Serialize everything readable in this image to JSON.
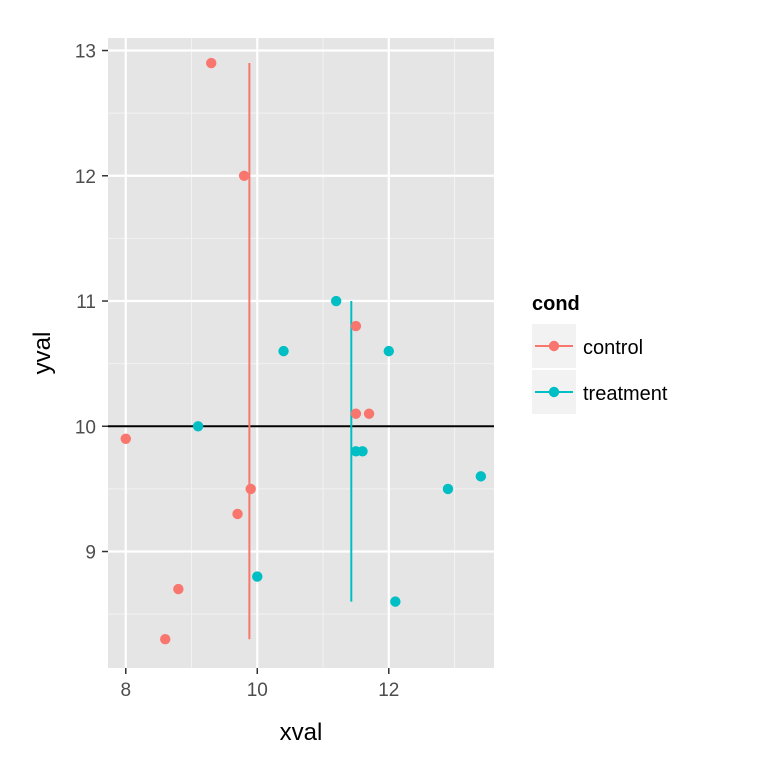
{
  "chart_data": {
    "type": "scatter",
    "xlabel": "xval",
    "ylabel": "yval",
    "xlim": [
      7.73,
      13.6
    ],
    "ylim": [
      8.07,
      13.1
    ],
    "xticks": [
      8,
      10,
      12
    ],
    "yticks": [
      9,
      10,
      11,
      12,
      13
    ],
    "grid": true,
    "hline": 10,
    "legend": {
      "title": "cond",
      "placement": "right",
      "entries": [
        "control",
        "treatment"
      ]
    },
    "series": [
      {
        "name": "control",
        "color": "#F8766D",
        "points": [
          {
            "x": 9.3,
            "y": 12.9
          },
          {
            "x": 9.8,
            "y": 12.0
          },
          {
            "x": 11.5,
            "y": 10.8
          },
          {
            "x": 11.5,
            "y": 10.1
          },
          {
            "x": 11.7,
            "y": 10.1
          },
          {
            "x": 8.0,
            "y": 9.9
          },
          {
            "x": 9.9,
            "y": 9.5
          },
          {
            "x": 9.7,
            "y": 9.3
          },
          {
            "x": 8.8,
            "y": 8.7
          },
          {
            "x": 8.6,
            "y": 8.3
          }
        ],
        "vline": {
          "x": 9.88,
          "y_min": 8.3,
          "y_max": 12.9
        }
      },
      {
        "name": "treatment",
        "color": "#00BFC4",
        "points": [
          {
            "x": 11.2,
            "y": 11.0
          },
          {
            "x": 10.4,
            "y": 10.6
          },
          {
            "x": 12.0,
            "y": 10.6
          },
          {
            "x": 9.1,
            "y": 10.0
          },
          {
            "x": 11.5,
            "y": 9.8
          },
          {
            "x": 11.6,
            "y": 9.8
          },
          {
            "x": 12.9,
            "y": 9.5
          },
          {
            "x": 13.4,
            "y": 9.6
          },
          {
            "x": 10.0,
            "y": 8.8
          },
          {
            "x": 12.1,
            "y": 8.6
          }
        ],
        "vline": {
          "x": 11.43,
          "y_min": 8.6,
          "y_max": 11.0
        }
      }
    ]
  }
}
